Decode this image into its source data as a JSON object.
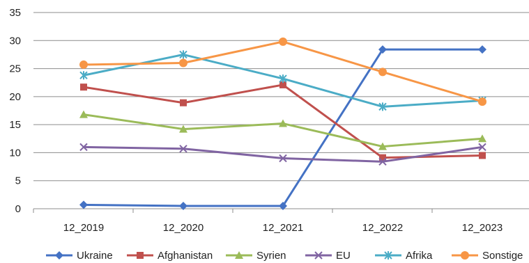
{
  "chart_data": {
    "type": "line",
    "title": "",
    "xlabel": "",
    "ylabel": "",
    "categories": [
      "12_2019",
      "12_2020",
      "12_2021",
      "12_2022",
      "12_2023"
    ],
    "ylim": [
      0,
      35
    ],
    "yticks": [
      0,
      5,
      10,
      15,
      20,
      25,
      30,
      35
    ],
    "grid": "horizontal",
    "legend_position": "bottom",
    "series": [
      {
        "name": "Ukraine",
        "values": [
          0.7,
          0.5,
          0.5,
          28.4,
          28.4
        ],
        "color": "#4472C4",
        "marker": "diamond"
      },
      {
        "name": "Afghanistan",
        "values": [
          21.7,
          18.9,
          22.1,
          9.1,
          9.5
        ],
        "color": "#C0504D",
        "marker": "square"
      },
      {
        "name": "Syrien",
        "values": [
          16.8,
          14.2,
          15.2,
          11.1,
          12.5
        ],
        "color": "#9BBB59",
        "marker": "triangle"
      },
      {
        "name": "EU",
        "values": [
          11.0,
          10.7,
          9.0,
          8.4,
          11.0
        ],
        "color": "#8064A2",
        "marker": "x"
      },
      {
        "name": "Afrika",
        "values": [
          23.8,
          27.5,
          23.2,
          18.2,
          19.3
        ],
        "color": "#4BACC6",
        "marker": "star"
      },
      {
        "name": "Sonstige",
        "values": [
          25.7,
          26.0,
          29.8,
          24.4,
          19.1
        ],
        "color": "#F79646",
        "marker": "circle"
      }
    ]
  }
}
